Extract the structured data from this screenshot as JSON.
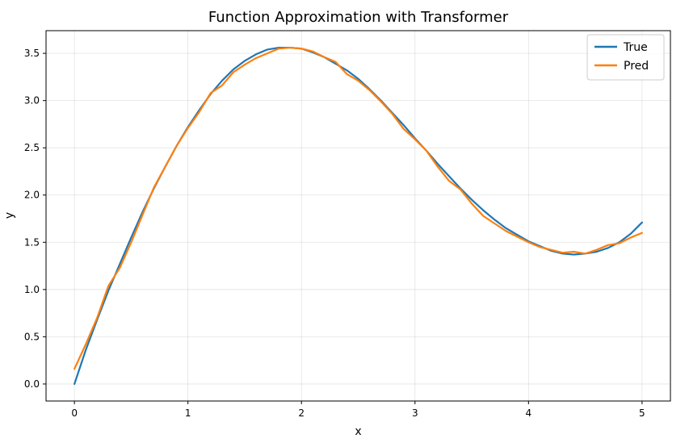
{
  "chart_data": {
    "type": "line",
    "title": "Function Approximation with Transformer",
    "xlabel": "x",
    "ylabel": "y",
    "xlim": [
      -0.25,
      5.25
    ],
    "ylim": [
      -0.18,
      3.74
    ],
    "xticks": [
      0,
      1,
      2,
      3,
      4,
      5
    ],
    "xtick_labels": [
      "0",
      "1",
      "2",
      "3",
      "4",
      "5"
    ],
    "yticks": [
      0.0,
      0.5,
      1.0,
      1.5,
      2.0,
      2.5,
      3.0,
      3.5
    ],
    "ytick_labels": [
      "0.0",
      "0.5",
      "1.0",
      "1.5",
      "2.0",
      "2.5",
      "3.0",
      "3.5"
    ],
    "grid": true,
    "legend": "top-right",
    "series": [
      {
        "name": "True",
        "color": "#1f77b4",
        "x": [
          0,
          0.1,
          0.2,
          0.3,
          0.4,
          0.5,
          0.6,
          0.7,
          0.8,
          0.9,
          1.0,
          1.1,
          1.2,
          1.3,
          1.4,
          1.5,
          1.6,
          1.7,
          1.8,
          1.9,
          2.0,
          2.1,
          2.2,
          2.3,
          2.4,
          2.5,
          2.6,
          2.7,
          2.8,
          2.9,
          3.0,
          3.1,
          3.2,
          3.3,
          3.4,
          3.5,
          3.6,
          3.7,
          3.8,
          3.9,
          4.0,
          4.1,
          4.2,
          4.3,
          4.4,
          4.5,
          4.6,
          4.7,
          4.8,
          4.9,
          5.0
        ],
        "y": [
          0.0,
          0.36,
          0.68,
          0.99,
          1.27,
          1.55,
          1.82,
          2.07,
          2.3,
          2.52,
          2.72,
          2.9,
          3.07,
          3.21,
          3.33,
          3.42,
          3.49,
          3.54,
          3.56,
          3.56,
          3.55,
          3.51,
          3.46,
          3.39,
          3.32,
          3.23,
          3.12,
          3.0,
          2.87,
          2.74,
          2.6,
          2.47,
          2.33,
          2.2,
          2.07,
          1.95,
          1.84,
          1.74,
          1.65,
          1.58,
          1.51,
          1.46,
          1.41,
          1.38,
          1.37,
          1.38,
          1.4,
          1.44,
          1.5,
          1.59,
          1.71
        ]
      },
      {
        "name": "Pred",
        "color": "#ff7f0e",
        "x": [
          0,
          0.1,
          0.2,
          0.3,
          0.4,
          0.5,
          0.6,
          0.7,
          0.8,
          0.9,
          1.0,
          1.1,
          1.2,
          1.3,
          1.4,
          1.5,
          1.6,
          1.7,
          1.8,
          1.9,
          2.0,
          2.1,
          2.2,
          2.3,
          2.4,
          2.5,
          2.6,
          2.7,
          2.8,
          2.9,
          3.0,
          3.1,
          3.2,
          3.3,
          3.4,
          3.5,
          3.6,
          3.7,
          3.8,
          3.9,
          4.0,
          4.1,
          4.2,
          4.3,
          4.4,
          4.5,
          4.6,
          4.7,
          4.8,
          4.9,
          5.0
        ],
        "y": [
          0.16,
          0.42,
          0.7,
          1.04,
          1.23,
          1.5,
          1.79,
          2.08,
          2.3,
          2.52,
          2.71,
          2.88,
          3.08,
          3.16,
          3.3,
          3.38,
          3.45,
          3.5,
          3.55,
          3.56,
          3.55,
          3.52,
          3.46,
          3.41,
          3.28,
          3.21,
          3.11,
          2.99,
          2.86,
          2.7,
          2.59,
          2.47,
          2.3,
          2.15,
          2.06,
          1.91,
          1.78,
          1.7,
          1.62,
          1.56,
          1.5,
          1.45,
          1.42,
          1.39,
          1.4,
          1.38,
          1.42,
          1.47,
          1.49,
          1.55,
          1.6
        ]
      }
    ]
  }
}
